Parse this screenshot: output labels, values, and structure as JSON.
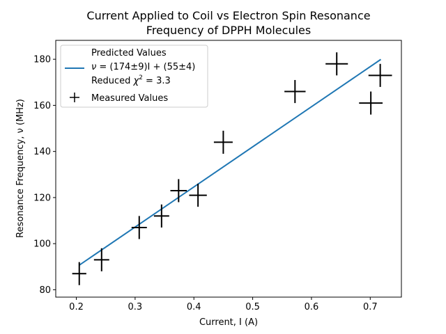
{
  "chart_data": {
    "type": "scatter",
    "title_line1": "Current Applied to Coil vs Electron Spin Resonance",
    "title_line2": "Frequency of DPPH Molecules",
    "xlabel": "Current, I (A)",
    "ylabel": "Resonance Frequency, ν (MHz)",
    "xlim": [
      0.165,
      0.753
    ],
    "ylim": [
      76.8,
      188.2
    ],
    "xticks": [
      0.2,
      0.3,
      0.4,
      0.5,
      0.6,
      0.7
    ],
    "xtick_labels": [
      "0.2",
      "0.3",
      "0.4",
      "0.5",
      "0.6",
      "0.7"
    ],
    "yticks": [
      80,
      100,
      120,
      140,
      160,
      180
    ],
    "ytick_labels": [
      "80",
      "100",
      "120",
      "140",
      "160",
      "180"
    ],
    "grid": false,
    "legend_position": "top-left",
    "fit_line": {
      "label_line1": "Predicted Values",
      "label_line2_prefix": "ν",
      "label_line2": " = (174±9)I + (55±4)",
      "label_line3_prefix": "Reduced ",
      "label_line3_chi": "χ",
      "label_line3_sup": "2",
      "label_line3_suffix": " = 3.3",
      "color": "#1f77b4",
      "slope": 174,
      "intercept": 55,
      "x": [
        0.205,
        0.718
      ]
    },
    "series": [
      {
        "name": "Measured Values",
        "color": "#000000",
        "marker": "+",
        "points": [
          {
            "x": 0.205,
            "y": 87,
            "xerr": 0.012,
            "yerr": 5
          },
          {
            "x": 0.243,
            "y": 93,
            "xerr": 0.013,
            "yerr": 5
          },
          {
            "x": 0.307,
            "y": 107,
            "xerr": 0.013,
            "yerr": 5
          },
          {
            "x": 0.345,
            "y": 112,
            "xerr": 0.013,
            "yerr": 5
          },
          {
            "x": 0.374,
            "y": 123,
            "xerr": 0.014,
            "yerr": 5
          },
          {
            "x": 0.407,
            "y": 121,
            "xerr": 0.015,
            "yerr": 5
          },
          {
            "x": 0.45,
            "y": 144,
            "xerr": 0.016,
            "yerr": 5
          },
          {
            "x": 0.572,
            "y": 166,
            "xerr": 0.018,
            "yerr": 5
          },
          {
            "x": 0.643,
            "y": 178,
            "xerr": 0.019,
            "yerr": 5
          },
          {
            "x": 0.701,
            "y": 161,
            "xerr": 0.02,
            "yerr": 5
          },
          {
            "x": 0.717,
            "y": 173,
            "xerr": 0.02,
            "yerr": 5
          }
        ]
      }
    ]
  }
}
